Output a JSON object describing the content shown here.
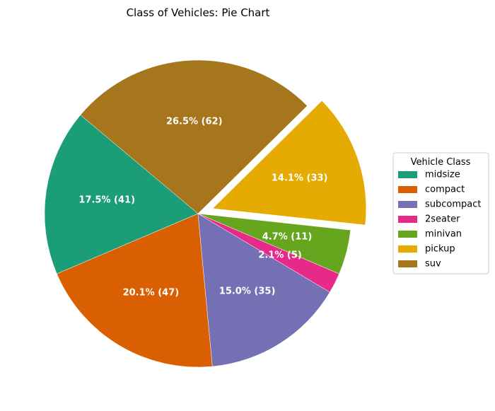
{
  "chart_data": {
    "type": "pie",
    "title": "Class of Vehicles: Pie Chart",
    "slices": [
      {
        "name": "midsize",
        "value": 41,
        "label": "17.5% (41)",
        "color": "#1b9e77",
        "exploded": false
      },
      {
        "name": "compact",
        "value": 47,
        "label": "20.1% (47)",
        "color": "#d95f02",
        "exploded": false
      },
      {
        "name": "subcompact",
        "value": 35,
        "label": "15.0% (35)",
        "color": "#7570b3",
        "exploded": false
      },
      {
        "name": "2seater",
        "value": 5,
        "label": "2.1% (5)",
        "color": "#e7298a",
        "exploded": false
      },
      {
        "name": "minivan",
        "value": 11,
        "label": "4.7% (11)",
        "color": "#66a61e",
        "exploded": false
      },
      {
        "name": "pickup",
        "value": 33,
        "label": "14.1% (33)",
        "color": "#e6ab02",
        "exploded": true
      },
      {
        "name": "suv",
        "value": 62,
        "label": "26.5% (62)",
        "color": "#a6761d",
        "exploded": false
      }
    ],
    "start_angle_deg": 140,
    "legend": {
      "title": "Vehicle Class",
      "placement": "center-right"
    }
  }
}
